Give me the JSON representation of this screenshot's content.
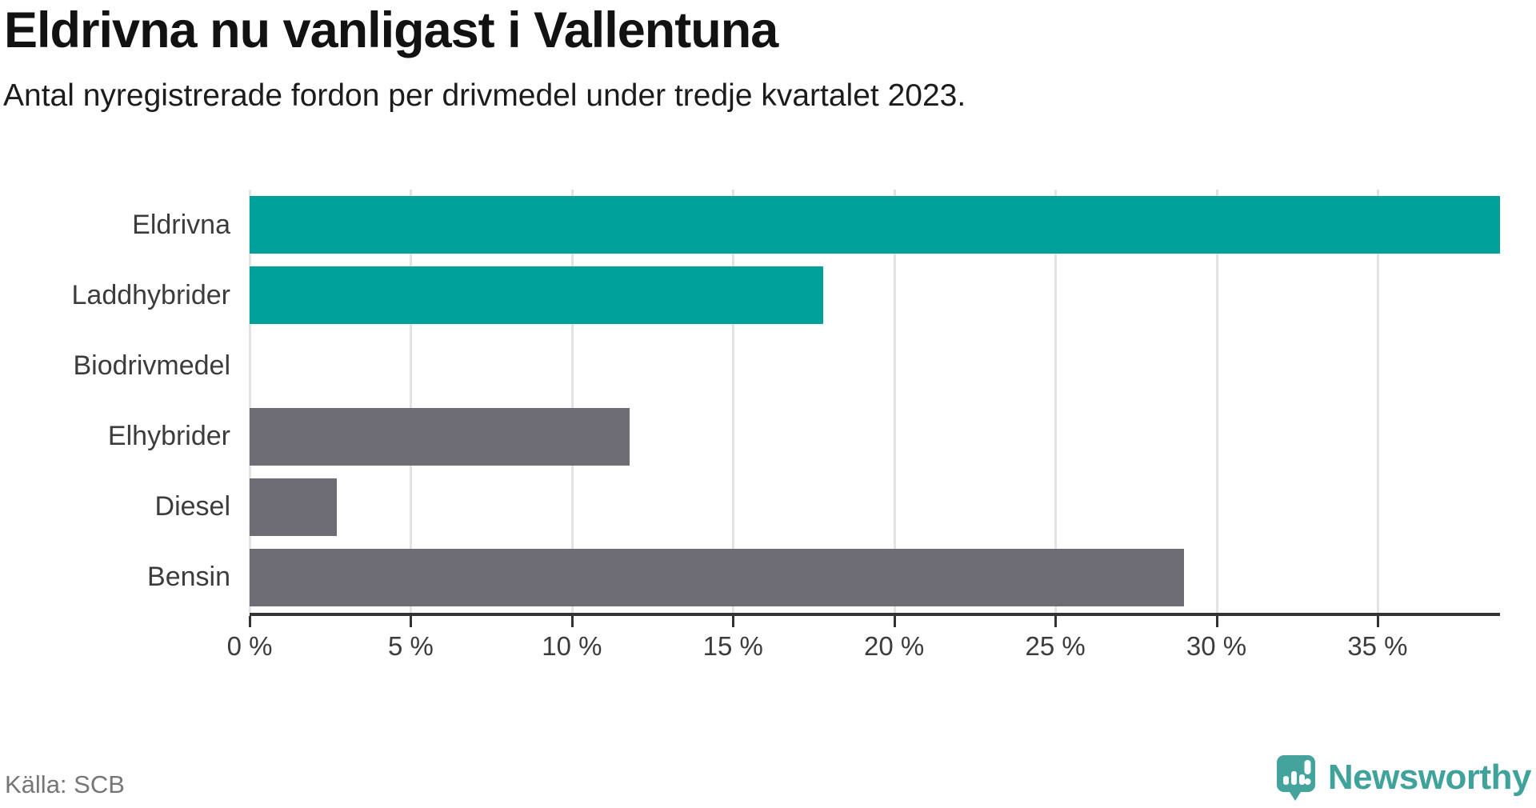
{
  "header": {
    "title": "Eldrivna nu vanligast i Vallentuna",
    "subtitle": "Antal nyregistrerade fordon per drivmedel under tredje kvartalet 2023."
  },
  "chart_data": {
    "type": "bar",
    "orientation": "horizontal",
    "categories": [
      "Eldrivna",
      "Laddhybrider",
      "Biodrivmedel",
      "Elhybrider",
      "Diesel",
      "Bensin"
    ],
    "values": [
      38.8,
      17.8,
      0,
      11.8,
      2.7,
      29.0
    ],
    "bar_colors": [
      "#00a19a",
      "#00a19a",
      "#6e6c74",
      "#6e6c74",
      "#6e6c74",
      "#6e6c74"
    ],
    "xlim": [
      0,
      38.8
    ],
    "ticks": [
      0,
      5,
      10,
      15,
      20,
      25,
      30,
      35
    ],
    "tick_labels": [
      "0 %",
      "5 %",
      "10 %",
      "15 %",
      "20 %",
      "25 %",
      "30 %",
      "35 %"
    ],
    "xlabel": "",
    "ylabel": "",
    "grid": "vertical",
    "legend": "none",
    "accent_color": "#00a19a",
    "neutral_color": "#6e6c74",
    "gridline_color": "#e3e3e3",
    "axis_color": "#333333"
  },
  "footer": {
    "source": "Källa: SCB",
    "brand": "Newsworthy",
    "brand_color": "#3fa29b"
  }
}
